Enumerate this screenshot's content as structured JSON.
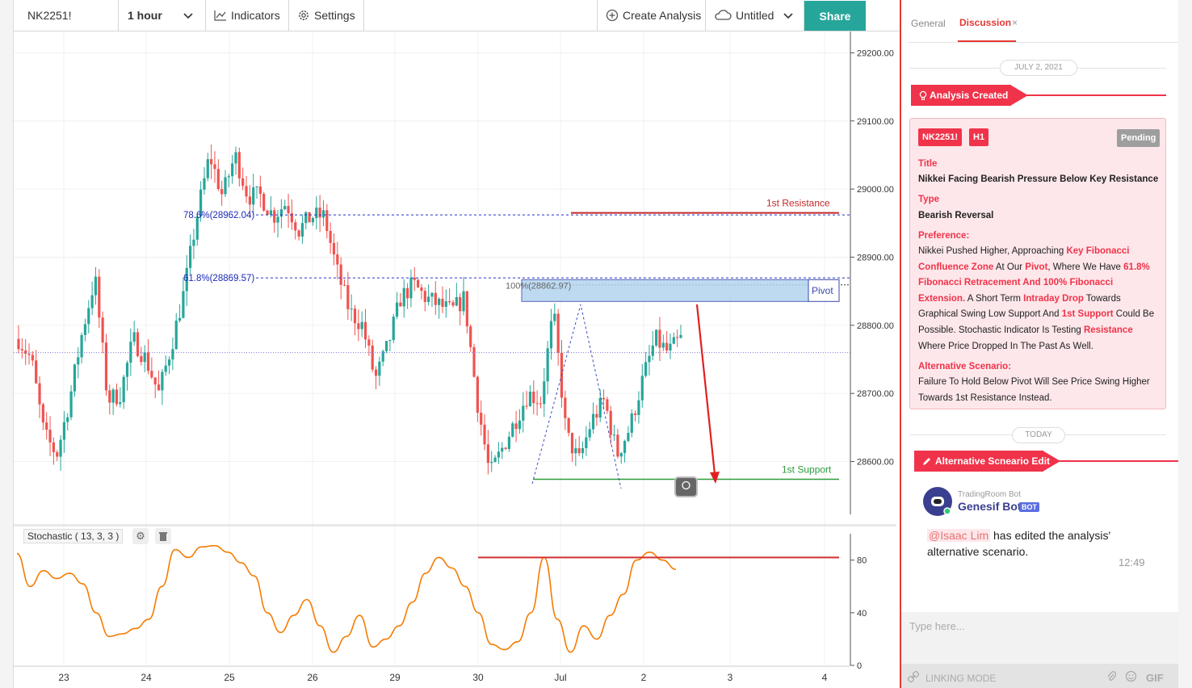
{
  "toolbar": {
    "symbol": "NK2251!",
    "interval": "1 hour",
    "indicators_label": "Indicators",
    "settings_label": "Settings",
    "create_analysis_label": "Create Analysis",
    "layout_name": "Untitled",
    "share_label": "Share"
  },
  "chart_data": {
    "type": "candlestick",
    "symbol": "NK2251!",
    "interval": "1 hour",
    "ylim": [
      28520,
      29210
    ],
    "y_ticks": [
      "29200.00",
      "29100.00",
      "29000.00",
      "28900.00",
      "28800.00",
      "28700.00",
      "28600.00"
    ],
    "x_ticks": [
      "23",
      "24",
      "25",
      "26",
      "29",
      "30",
      "Jul",
      "2",
      "3",
      "4"
    ],
    "price_path": [
      28780,
      28750,
      28640,
      28610,
      28690,
      28790,
      28870,
      28690,
      28700,
      28780,
      28750,
      28700,
      28770,
      28850,
      28960,
      29050,
      28990,
      29050,
      28990,
      28990,
      28960,
      28980,
      28940,
      28960,
      28960,
      28880,
      28820,
      28800,
      28720,
      28770,
      28840,
      28860,
      28840,
      28830,
      28820,
      28840,
      28690,
      28580,
      28620,
      28660,
      28700,
      28690,
      28820,
      28640,
      28600,
      28660,
      28690,
      28610,
      28650,
      28720,
      28780,
      28760,
      28780
    ],
    "stochastic_k": [
      85,
      60,
      72,
      66,
      70,
      62,
      40,
      22,
      24,
      28,
      35,
      60,
      88,
      82,
      90,
      91,
      86,
      78,
      68,
      40,
      25,
      38,
      50,
      30,
      10,
      22,
      38,
      14,
      20,
      30,
      48,
      70,
      82,
      74,
      60,
      40,
      16,
      12,
      18,
      40,
      82,
      35,
      10,
      30,
      20,
      38,
      54,
      80,
      86,
      80,
      73
    ],
    "fib_levels": [
      {
        "label": "78.6%(28962.04)",
        "price": 28962.04
      },
      {
        "label": "61.8%(28869.57)",
        "price": 28869.57
      },
      {
        "label": "100%(28862.97)",
        "price": 28862.97
      }
    ],
    "levels": [
      {
        "label": "1st Resistance",
        "price": 28965,
        "color": "#c62828"
      },
      {
        "label": "Pivot",
        "price": 28855,
        "color": "#3949ab"
      },
      {
        "label": "1st Support",
        "price": 28574,
        "color": "#2e9b3e"
      }
    ],
    "last_price": 28760,
    "stochastic": {
      "label": "Stochastic ( 13, 3, 3 )",
      "ylim": [
        0,
        100
      ],
      "ticks": [
        "80",
        "40",
        "0"
      ],
      "resistance": 82
    }
  },
  "panel": {
    "tab_general": "General",
    "tab_discussion": "Discussion",
    "tab_close": "×",
    "date1": "JULY 2, 2021",
    "event1": "Analysis Created",
    "card": {
      "symbol_badge": "NK2251!",
      "tf_badge": "H1",
      "status": "Pending",
      "title_label": "Title",
      "title": "Nikkei Facing Bearish Pressure Below Key Resistance",
      "type_label": "Type",
      "type": "Bearish Reversal",
      "pref_label": "Preference:",
      "alt_label": "Alternative Scenario:",
      "alt_text": "Failure To Hold Below Pivot Will See Price Swing Higher Towards 1st Resistance Instead."
    },
    "date2": "TODAY",
    "event2": "Alternative Scneario Edit",
    "msg": {
      "bot_source": "TradingRoom Bot",
      "bot_name": "Genesif Bot",
      "bot_badge": "BOT",
      "mention": "@Isaac Lim",
      "text": "has edited the analysis' alternative scenario.",
      "time": "12:49"
    },
    "input_placeholder": "Type here...",
    "linking_mode": "LINKING MODE",
    "gif_label": "GIF"
  }
}
